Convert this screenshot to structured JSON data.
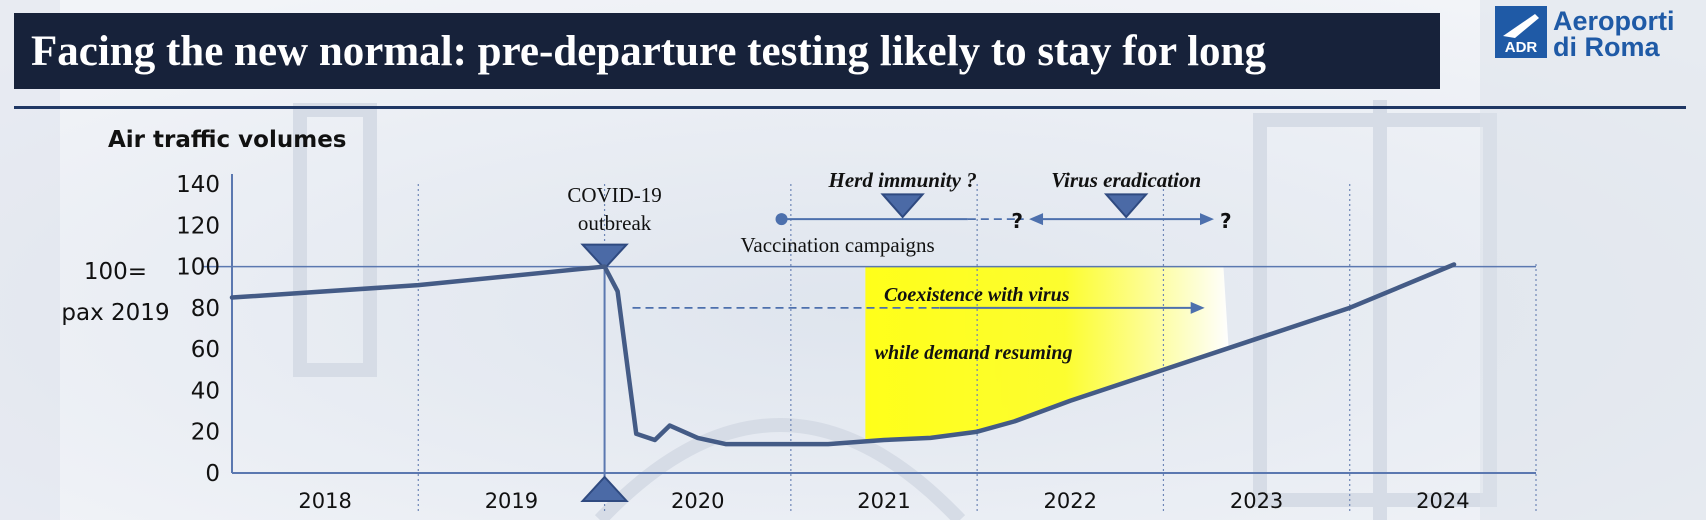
{
  "header": {
    "title": "Facing the new normal: pre-departure testing likely to stay for long"
  },
  "logo": {
    "line1": "Aeroporti",
    "line2": "di Roma",
    "mark_text": "ADR"
  },
  "chart_data": {
    "type": "line",
    "title": "Air traffic volumes",
    "ylabel": "100=\npax 2019",
    "ylim": [
      0,
      140
    ],
    "yticks": [
      0,
      20,
      40,
      60,
      80,
      100,
      120,
      140
    ],
    "categories": [
      "2018",
      "2019",
      "2020",
      "2021",
      "2022",
      "2023",
      "2024"
    ],
    "xlim": [
      2018.0,
      2025.0
    ],
    "reference_line": 100,
    "series": [
      {
        "name": "",
        "color": "#445b86",
        "points": [
          [
            2018.0,
            85
          ],
          [
            2019.0,
            91
          ],
          [
            2020.0,
            100
          ],
          [
            2020.07,
            88
          ],
          [
            2020.17,
            19
          ],
          [
            2020.27,
            16
          ],
          [
            2020.35,
            23
          ],
          [
            2020.5,
            17
          ],
          [
            2020.65,
            14
          ],
          [
            2021.0,
            14
          ],
          [
            2021.2,
            14
          ],
          [
            2021.5,
            16
          ],
          [
            2021.75,
            17
          ],
          [
            2022.0,
            20
          ],
          [
            2022.2,
            25
          ],
          [
            2022.5,
            35
          ],
          [
            2023.0,
            50
          ],
          [
            2023.5,
            65
          ],
          [
            2024.0,
            80
          ],
          [
            2024.56,
            101
          ]
        ]
      }
    ],
    "annotations": {
      "covid": "COVID-19\noutbreak",
      "herd": "Herd immunity ?",
      "virus_eradication": "Virus eradication",
      "vaccination": "Vaccination campaigns",
      "coexistence": "Coexistence with virus",
      "demand": "while demand resuming",
      "question_left": "?",
      "question_right": "?"
    },
    "highlight": {
      "x_range": [
        2021.4,
        2023.0
      ],
      "color": "#ffff1a"
    }
  }
}
